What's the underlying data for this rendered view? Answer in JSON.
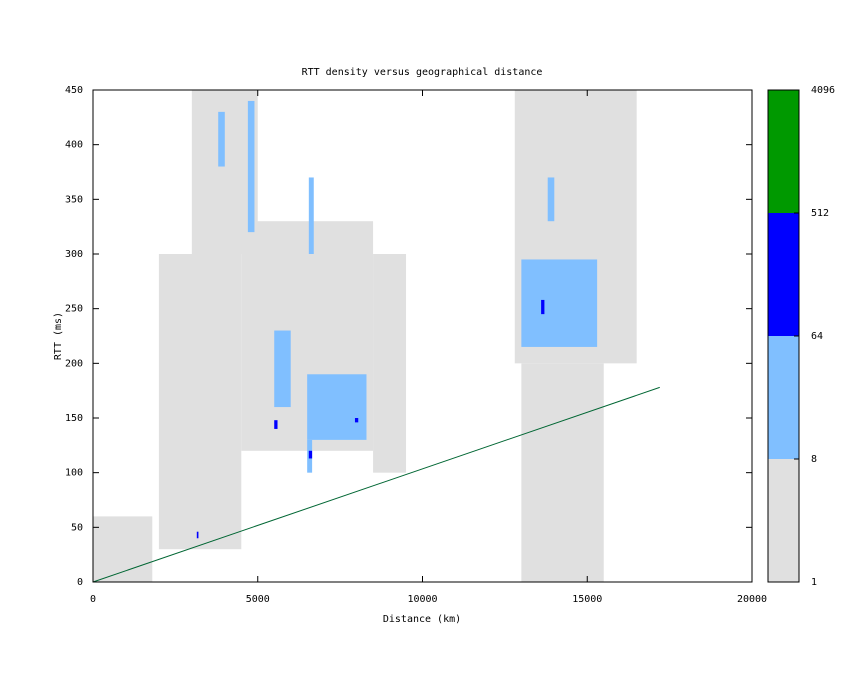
{
  "chart_data": {
    "type": "heatmap",
    "title": "RTT density versus geographical distance",
    "x_label": "Distance (km)",
    "y_label": "RTT (ms)",
    "xlim": [
      0,
      20000
    ],
    "ylim": [
      0,
      450
    ],
    "xticks": [
      0,
      5000,
      10000,
      15000,
      20000
    ],
    "yticks": [
      0,
      50,
      100,
      150,
      200,
      250,
      300,
      350,
      400,
      450
    ],
    "cells": {
      "x0": [
        3000,
        4500,
        12800,
        0,
        2000,
        13000,
        8500,
        13000,
        6500,
        4700,
        3800,
        5500,
        6550,
        13800,
        6500,
        6550,
        5500,
        13600,
        3150,
        7950
      ],
      "x1": [
        5000,
        8500,
        16500,
        1800,
        4500,
        15500,
        9500,
        15300,
        8300,
        4900,
        4000,
        6000,
        6700,
        14000,
        6650,
        6650,
        5600,
        13700,
        3200,
        8050
      ],
      "y0": [
        300,
        120,
        200,
        0,
        30,
        0,
        100,
        215,
        130,
        320,
        380,
        160,
        300,
        330,
        100,
        113,
        140,
        245,
        40,
        146
      ],
      "y1": [
        450,
        330,
        450,
        60,
        300,
        200,
        300,
        295,
        190,
        440,
        430,
        230,
        370,
        370,
        130,
        120,
        148,
        258,
        46,
        150
      ],
      "values": [
        3,
        3,
        3,
        2,
        2,
        2,
        2,
        20,
        30,
        15,
        12,
        10,
        10,
        10,
        12,
        100,
        100,
        200,
        80,
        70
      ]
    },
    "reference_line": {
      "x": [
        0,
        17200
      ],
      "y": [
        0,
        178
      ],
      "color": "#006633"
    },
    "colorscale": {
      "bounds": [
        1,
        8,
        64,
        512,
        4096
      ],
      "colors": [
        "#e0e0e0",
        "#80bfff",
        "#0000ff",
        "#009900"
      ]
    }
  }
}
